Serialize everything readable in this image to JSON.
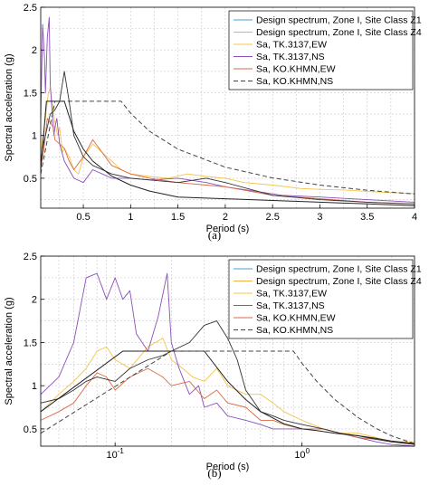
{
  "colors": {
    "design_z1": "#4a9fd8",
    "design_z4": "#f0b04c",
    "tk_ew": "#f5c44a",
    "tk_ns": "#8a4fb8",
    "ko_ew": "#d96a44",
    "ko_ns": "#333333",
    "design_solid": "#222222",
    "design_dashed": "#444444"
  },
  "chart_data": [
    {
      "type": "line",
      "panel_label": "(a)",
      "xlabel": "Period (s)",
      "ylabel": "Spectral acceleration (g)",
      "xscale": "linear",
      "xlim": [
        0.05,
        4
      ],
      "ylim": [
        0.15,
        2.5
      ],
      "xticks": [
        0.5,
        1,
        1.5,
        2,
        2.5,
        3,
        3.5,
        4
      ],
      "xtick_labels": [
        "0.5",
        "1",
        "1.5",
        "2",
        "2.5",
        "3",
        "3.5",
        "4"
      ],
      "yticks": [
        0.5,
        1,
        1.5,
        2,
        2.5
      ],
      "ytick_labels": [
        "0.5",
        "1",
        "1.5",
        "2",
        "2.5"
      ],
      "grid": true,
      "legend_position": "top-right",
      "legend": [
        "Design spectrum, Zone I, Site Class Z1",
        "Design spectrum, Zone I, Site Class Z4",
        "Sa, TK.3137,EW",
        "Sa, TK.3137,NS",
        "Sa, KO.KHMN,EW",
        "Sa, KO.KHMN,NS"
      ],
      "series": [
        {
          "name": "Sa, TK.3137,EW",
          "style": "tk_ew",
          "x": [
            0.05,
            0.08,
            0.1,
            0.13,
            0.15,
            0.18,
            0.2,
            0.23,
            0.25,
            0.28,
            0.3,
            0.35,
            0.4,
            0.45,
            0.5,
            0.6,
            0.7,
            0.8,
            0.9,
            1.0,
            1.2,
            1.4,
            1.6,
            1.8,
            2.0,
            2.2,
            2.5,
            2.8,
            3.0,
            3.3,
            3.6,
            4.0
          ],
          "y": [
            0.75,
            1.05,
            1.2,
            1.5,
            1.55,
            1.3,
            1.15,
            1.0,
            1.1,
            0.8,
            0.85,
            0.75,
            0.6,
            0.55,
            0.75,
            0.9,
            0.8,
            0.7,
            0.6,
            0.55,
            0.52,
            0.5,
            0.55,
            0.52,
            0.5,
            0.45,
            0.42,
            0.38,
            0.37,
            0.36,
            0.34,
            0.32
          ]
        },
        {
          "name": "Sa, TK.3137,NS",
          "style": "tk_ns",
          "x": [
            0.05,
            0.07,
            0.09,
            0.1,
            0.12,
            0.14,
            0.15,
            0.17,
            0.19,
            0.2,
            0.22,
            0.25,
            0.3,
            0.35,
            0.4,
            0.5,
            0.6,
            0.7,
            0.8,
            1.0,
            1.2,
            1.5,
            1.8,
            2.0,
            2.3,
            2.6,
            3.0,
            3.5,
            4.0
          ],
          "y": [
            1.2,
            2.3,
            1.9,
            1.5,
            2.15,
            2.38,
            1.6,
            1.3,
            1.0,
            1.1,
            1.2,
            0.9,
            0.7,
            0.6,
            0.5,
            0.45,
            0.6,
            0.55,
            0.5,
            0.5,
            0.48,
            0.5,
            0.45,
            0.4,
            0.35,
            0.3,
            0.28,
            0.25,
            0.22
          ]
        },
        {
          "name": "Sa, KO.KHMN,EW",
          "style": "ko_ew",
          "x": [
            0.05,
            0.08,
            0.1,
            0.12,
            0.15,
            0.18,
            0.2,
            0.25,
            0.3,
            0.35,
            0.4,
            0.5,
            0.6,
            0.7,
            0.8,
            1.0,
            1.2,
            1.5,
            1.8,
            2.0,
            2.5,
            3.0,
            3.5,
            4.0
          ],
          "y": [
            0.65,
            0.8,
            1.0,
            1.2,
            1.15,
            1.1,
            0.95,
            0.9,
            0.85,
            0.7,
            0.6,
            0.75,
            0.95,
            0.8,
            0.65,
            0.55,
            0.5,
            0.45,
            0.42,
            0.4,
            0.3,
            0.26,
            0.22,
            0.2
          ]
        },
        {
          "name": "Sa, KO.KHMN,NS",
          "style": "ko_ns",
          "x": [
            0.05,
            0.08,
            0.1,
            0.15,
            0.2,
            0.25,
            0.3,
            0.35,
            0.4,
            0.5,
            0.6,
            0.7,
            0.8,
            1.0,
            1.2,
            1.5,
            1.8,
            2.0,
            2.5,
            3.0,
            3.5,
            4.0
          ],
          "y": [
            0.7,
            0.9,
            1.0,
            1.25,
            1.3,
            1.4,
            1.75,
            1.4,
            1.0,
            0.75,
            0.65,
            0.6,
            0.55,
            0.5,
            0.48,
            0.45,
            0.5,
            0.45,
            0.3,
            0.25,
            0.22,
            0.2
          ]
        },
        {
          "name": "Design spectrum, Zone I, Site Class Z1",
          "style": "design_solid",
          "dash": false,
          "x": [
            0.05,
            0.11,
            0.3,
            0.4,
            0.5,
            0.6,
            0.8,
            1.0,
            1.2,
            1.5,
            2.0,
            2.5,
            3.0,
            3.5,
            4.0
          ],
          "y": [
            0.6,
            1.4,
            1.4,
            1.05,
            0.84,
            0.7,
            0.525,
            0.42,
            0.35,
            0.28,
            0.26,
            0.24,
            0.22,
            0.2,
            0.18
          ]
        },
        {
          "name": "Design spectrum, Zone I, Site Class Z4",
          "style": "design_dashed",
          "dash": true,
          "x": [
            0.05,
            0.2,
            0.9,
            1.0,
            1.2,
            1.5,
            2.0,
            2.5,
            3.0,
            3.5,
            4.0
          ],
          "y": [
            0.55,
            1.4,
            1.4,
            1.26,
            1.05,
            0.84,
            0.63,
            0.504,
            0.42,
            0.36,
            0.315
          ]
        }
      ]
    },
    {
      "type": "line",
      "panel_label": "(b)",
      "xlabel": "Period (s)",
      "ylabel": "Spectral acceleration (g)",
      "xscale": "log",
      "xlim": [
        0.04,
        4
      ],
      "ylim": [
        0.3,
        2.5
      ],
      "xticks": [
        0.1,
        1
      ],
      "xtick_labels": [
        "10",
        "10"
      ],
      "xtick_exponents": [
        "-1",
        "0"
      ],
      "yticks": [
        0.5,
        1,
        1.5,
        2,
        2.5
      ],
      "ytick_labels": [
        "0.5",
        "1",
        "1.5",
        "2",
        "2.5"
      ],
      "grid": true,
      "legend_position": "top-right",
      "legend": [
        "Design spectrum, Zone I, Site Class Z1",
        "Design spectrum, Zone I, Site Class Z4",
        "Sa, TK.3137,EW",
        "Sa, TK.3137,NS",
        "Sa, KO.KHMN,EW",
        "Sa, KO.KHMN,NS"
      ],
      "series": [
        {
          "name": "Sa, TK.3137,EW",
          "style": "tk_ew",
          "x": [
            0.04,
            0.05,
            0.06,
            0.07,
            0.08,
            0.09,
            0.1,
            0.12,
            0.15,
            0.18,
            0.2,
            0.23,
            0.26,
            0.3,
            0.35,
            0.4,
            0.5,
            0.6,
            0.7,
            0.8,
            1.0,
            1.3,
            1.6,
            2.0,
            2.5,
            3.0,
            4.0
          ],
          "y": [
            0.7,
            0.9,
            1.05,
            1.2,
            1.4,
            1.45,
            1.3,
            1.2,
            1.45,
            1.55,
            1.3,
            1.2,
            1.1,
            1.05,
            1.2,
            1.0,
            0.9,
            0.9,
            0.8,
            0.7,
            0.6,
            0.5,
            0.45,
            0.45,
            0.4,
            0.35,
            0.35
          ]
        },
        {
          "name": "Sa, TK.3137,NS",
          "style": "tk_ns",
          "x": [
            0.04,
            0.05,
            0.06,
            0.07,
            0.08,
            0.09,
            0.1,
            0.11,
            0.12,
            0.13,
            0.15,
            0.17,
            0.19,
            0.2,
            0.22,
            0.25,
            0.28,
            0.3,
            0.35,
            0.4,
            0.5,
            0.6,
            0.7,
            0.8,
            1.0,
            1.3,
            1.6,
            2.0,
            2.5,
            3.0,
            4.0
          ],
          "y": [
            0.9,
            1.1,
            1.5,
            2.25,
            2.3,
            2.0,
            2.25,
            2.0,
            2.1,
            1.6,
            1.4,
            1.8,
            2.3,
            1.5,
            1.2,
            0.9,
            1.0,
            0.75,
            0.8,
            0.65,
            0.6,
            0.55,
            0.5,
            0.5,
            0.5,
            0.5,
            0.45,
            0.4,
            0.35,
            0.32,
            0.3
          ]
        },
        {
          "name": "Sa, KO.KHMN,EW",
          "style": "ko_ew",
          "x": [
            0.04,
            0.05,
            0.06,
            0.07,
            0.08,
            0.09,
            0.1,
            0.12,
            0.15,
            0.18,
            0.2,
            0.25,
            0.3,
            0.35,
            0.4,
            0.5,
            0.6,
            0.7,
            0.8,
            1.0,
            1.3,
            1.6,
            2.0,
            2.5,
            3.0,
            4.0
          ],
          "y": [
            0.6,
            0.7,
            0.8,
            1.0,
            1.15,
            1.1,
            0.95,
            1.1,
            1.2,
            1.1,
            1.0,
            1.05,
            0.85,
            0.95,
            0.8,
            0.75,
            0.6,
            0.6,
            0.55,
            0.5,
            0.5,
            0.45,
            0.4,
            0.38,
            0.35,
            0.32
          ]
        },
        {
          "name": "Sa, KO.KHMN,NS",
          "style": "ko_ns",
          "x": [
            0.04,
            0.05,
            0.06,
            0.07,
            0.08,
            0.1,
            0.12,
            0.15,
            0.18,
            0.2,
            0.25,
            0.3,
            0.35,
            0.4,
            0.45,
            0.5,
            0.6,
            0.7,
            0.8,
            1.0,
            1.3,
            1.6,
            2.0,
            2.5,
            3.0,
            4.0
          ],
          "y": [
            0.8,
            0.85,
            0.95,
            1.05,
            1.1,
            1.05,
            1.2,
            1.3,
            1.35,
            1.4,
            1.5,
            1.7,
            1.75,
            1.55,
            1.3,
            0.95,
            0.7,
            0.65,
            0.6,
            0.55,
            0.5,
            0.45,
            0.42,
            0.38,
            0.35,
            0.32
          ]
        },
        {
          "name": "Design spectrum, Zone I, Site Class Z1",
          "style": "design_solid",
          "dash": false,
          "x": [
            0.04,
            0.11,
            0.3,
            0.4,
            0.5,
            0.6,
            0.8,
            1.0,
            1.2,
            1.5,
            2.0,
            2.5,
            3.0,
            4.0
          ],
          "y": [
            0.7,
            1.4,
            1.4,
            1.05,
            0.84,
            0.7,
            0.56,
            0.5,
            0.48,
            0.45,
            0.42,
            0.39,
            0.36,
            0.33
          ]
        },
        {
          "name": "Design spectrum, Zone I, Site Class Z4",
          "style": "design_dashed",
          "dash": true,
          "x": [
            0.04,
            0.2,
            0.9,
            1.0,
            1.2,
            1.5,
            2.0,
            2.5,
            3.0,
            4.0
          ],
          "y": [
            0.45,
            1.4,
            1.4,
            1.26,
            1.05,
            0.84,
            0.63,
            0.504,
            0.42,
            0.33
          ]
        }
      ]
    }
  ]
}
